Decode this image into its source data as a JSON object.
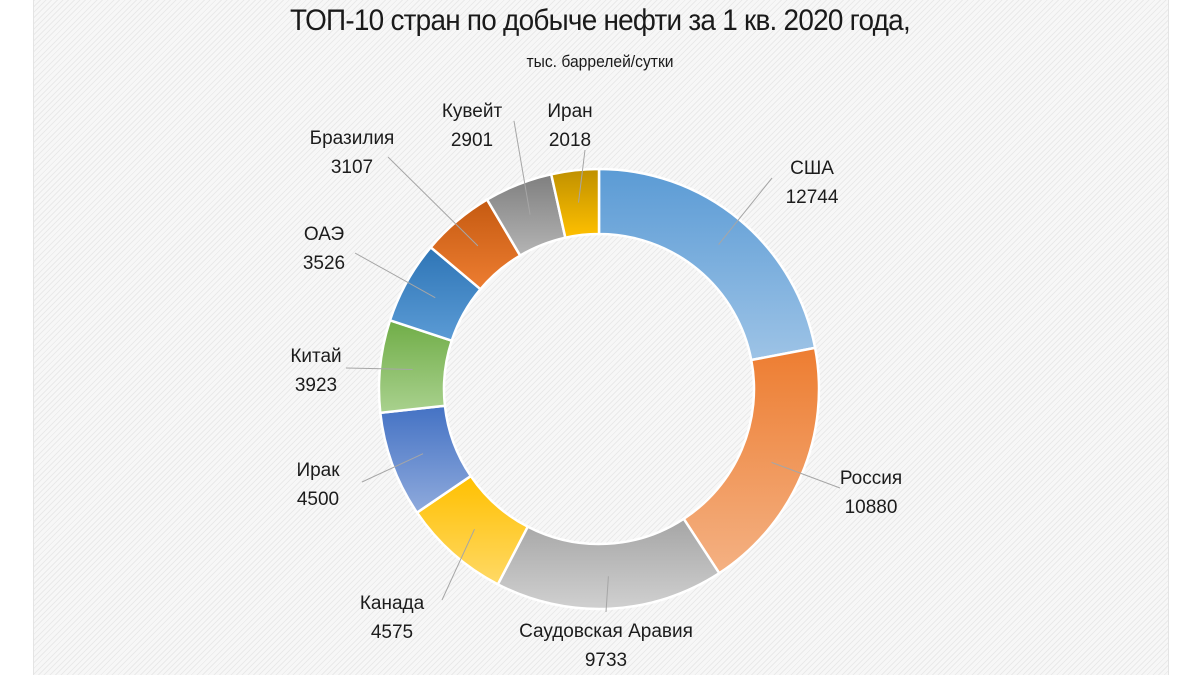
{
  "chart_data": {
    "type": "pie",
    "subtype": "donut",
    "title": "ТОП-10 стран по добыче нефти за 1 кв. 2020 года,",
    "subtitle": "тыс. баррелей/сутки",
    "unit": "тыс. баррелей/сутки",
    "start_angle": "12 o'clock, clockwise",
    "legend": "none (data labels with leader lines)",
    "categories": [
      "США",
      "Россия",
      "Саудовская Аравия",
      "Канада",
      "Ирак",
      "Китай",
      "ОАЭ",
      "Бразилия",
      "Кувейт",
      "Иран"
    ],
    "values": [
      12744,
      10880,
      9733,
      4575,
      4500,
      3923,
      3526,
      3107,
      2901,
      2018
    ],
    "colors": [
      "#5b9bd5",
      "#ed7d31",
      "#a5a5a5",
      "#ffc000",
      "#4472c4",
      "#70ad47",
      "#2e75b6",
      "#c55a11",
      "#7f7f7f",
      "#bf9000"
    ],
    "slices": [
      {
        "label": "США",
        "value": 12744,
        "color_top": "#5b9bd5",
        "color_bottom": "#9dc3e6"
      },
      {
        "label": "Россия",
        "value": 10880,
        "color_top": "#ed7d31",
        "color_bottom": "#f4b183"
      },
      {
        "label": "Саудовская Аравия",
        "value": 9733,
        "color_top": "#a5a5a5",
        "color_bottom": "#d0d0d0"
      },
      {
        "label": "Канада",
        "value": 4575,
        "color_top": "#ffc000",
        "color_bottom": "#ffd966"
      },
      {
        "label": "Ирак",
        "value": 4500,
        "color_top": "#4472c4",
        "color_bottom": "#8faadc"
      },
      {
        "label": "Китай",
        "value": 3923,
        "color_top": "#70ad47",
        "color_bottom": "#a9d18e"
      },
      {
        "label": "ОАЭ",
        "value": 3526,
        "color_top": "#2e75b6",
        "color_bottom": "#5b9bd5"
      },
      {
        "label": "Бразилия",
        "value": 3107,
        "color_top": "#c55a11",
        "color_bottom": "#ed7d31"
      },
      {
        "label": "Кувейт",
        "value": 2901,
        "color_top": "#7f7f7f",
        "color_bottom": "#b4b4b4"
      },
      {
        "label": "Иран",
        "value": 2018,
        "color_top": "#bf9000",
        "color_bottom": "#ffc000"
      }
    ]
  },
  "labels": [
    {
      "name": "США",
      "value": "12744"
    },
    {
      "name": "Россия",
      "value": "10880"
    },
    {
      "name": "Саудовская Аравия",
      "value": "9733"
    },
    {
      "name": "Канада",
      "value": "4575"
    },
    {
      "name": "Ирак",
      "value": "4500"
    },
    {
      "name": "Китай",
      "value": "3923"
    },
    {
      "name": "ОАЭ",
      "value": "3526"
    },
    {
      "name": "Бразилия",
      "value": "3107"
    },
    {
      "name": "Кувейт",
      "value": "2901"
    },
    {
      "name": "Иран",
      "value": "2018"
    }
  ]
}
